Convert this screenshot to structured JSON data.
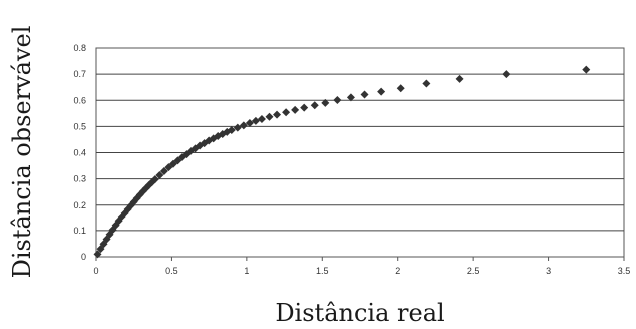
{
  "chart_data": {
    "type": "scatter",
    "title": "",
    "xlabel": "Distância real",
    "ylabel": "Distância observável",
    "xlim": [
      0,
      3.5
    ],
    "ylim": [
      0,
      0.8
    ],
    "x_ticks": [
      "0",
      "0.5",
      "1",
      "1.5",
      "2",
      "2.5",
      "3",
      "3.5"
    ],
    "y_ticks": [
      "0",
      "0.1",
      "0.2",
      "0.3",
      "0.4",
      "0.5",
      "0.6",
      "0.7",
      "0.8"
    ],
    "x_tick_values": [
      0,
      0.5,
      1,
      1.5,
      2,
      2.5,
      3,
      3.5
    ],
    "y_tick_values": [
      0,
      0.1,
      0.2,
      0.3,
      0.4,
      0.5,
      0.6,
      0.7,
      0.8
    ],
    "grid": "horizontal",
    "legend": "none",
    "marker_color": "#333333",
    "series": [
      {
        "x": [
          0.01,
          0.03,
          0.05,
          0.07,
          0.09,
          0.11,
          0.13,
          0.15,
          0.17,
          0.19,
          0.21,
          0.23,
          0.25,
          0.27,
          0.29,
          0.31,
          0.33,
          0.35,
          0.37,
          0.39,
          0.42,
          0.45,
          0.48,
          0.51,
          0.54,
          0.57,
          0.6,
          0.63,
          0.66,
          0.69,
          0.72,
          0.75,
          0.78,
          0.81,
          0.84,
          0.87,
          0.9,
          0.94,
          0.98,
          1.02,
          1.06,
          1.1,
          1.15,
          1.2,
          1.26,
          1.32,
          1.38,
          1.45,
          1.52,
          1.6,
          1.69,
          1.78,
          1.89,
          2.02,
          2.19,
          2.41,
          2.72,
          3.25
        ],
        "y": [
          0.01,
          0.03,
          0.049,
          0.067,
          0.085,
          0.103,
          0.12,
          0.137,
          0.153,
          0.169,
          0.184,
          0.198,
          0.212,
          0.226,
          0.239,
          0.252,
          0.264,
          0.276,
          0.287,
          0.298,
          0.314,
          0.329,
          0.344,
          0.357,
          0.37,
          0.383,
          0.394,
          0.406,
          0.416,
          0.427,
          0.436,
          0.446,
          0.454,
          0.463,
          0.471,
          0.479,
          0.486,
          0.495,
          0.504,
          0.513,
          0.521,
          0.528,
          0.537,
          0.545,
          0.554,
          0.563,
          0.572,
          0.581,
          0.59,
          0.601,
          0.611,
          0.622,
          0.633,
          0.646,
          0.664,
          0.682,
          0.7,
          0.717
        ]
      }
    ]
  }
}
